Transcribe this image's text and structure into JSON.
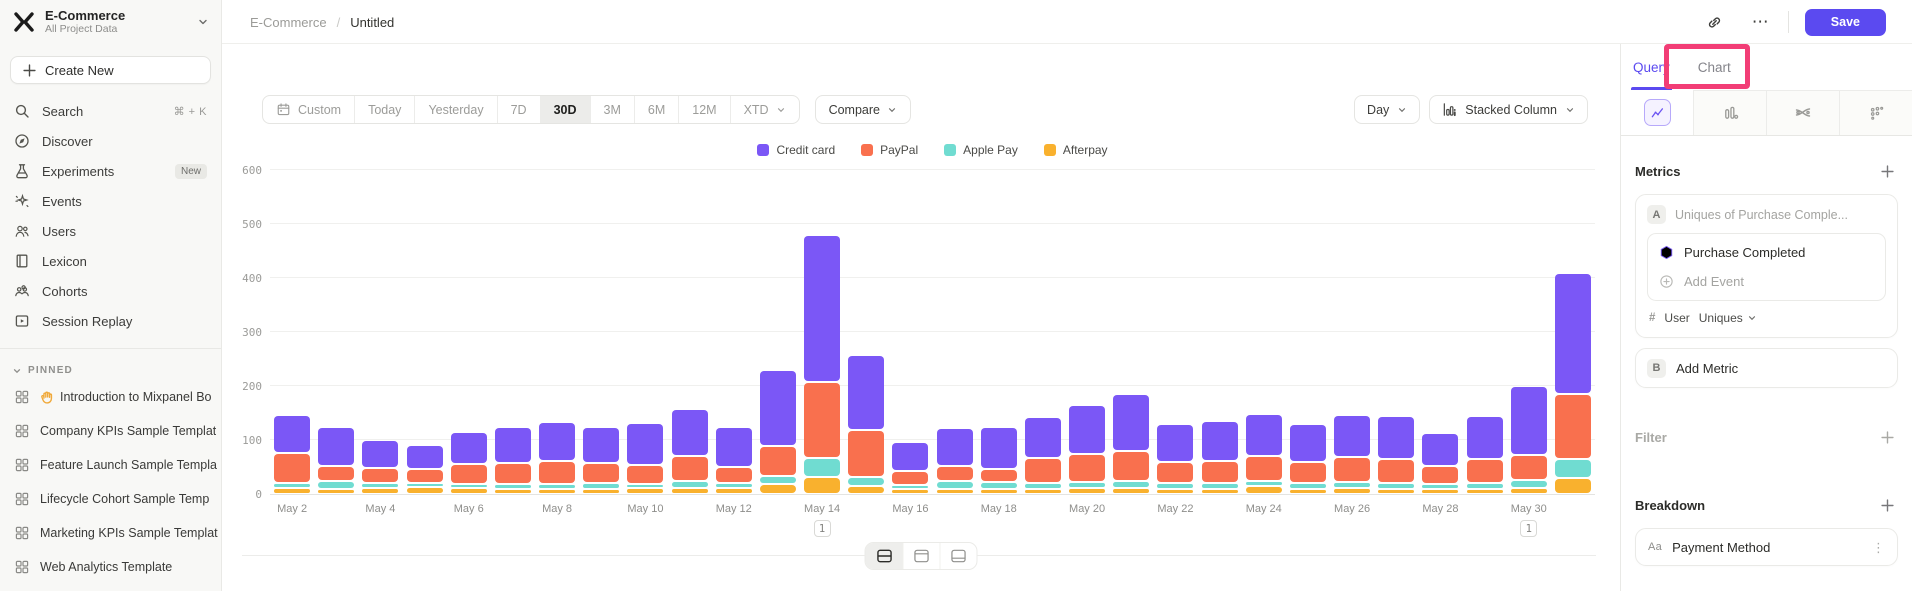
{
  "sidebar": {
    "project": {
      "name": "E-Commerce",
      "subtitle": "All Project Data"
    },
    "create_new_label": "Create New",
    "nav_items": [
      {
        "id": "search",
        "label": "Search",
        "shortcut": "⌘ + K"
      },
      {
        "id": "discover",
        "label": "Discover"
      },
      {
        "id": "experiments",
        "label": "Experiments",
        "badge": "New"
      },
      {
        "id": "events",
        "label": "Events"
      },
      {
        "id": "users",
        "label": "Users"
      },
      {
        "id": "lexicon",
        "label": "Lexicon"
      },
      {
        "id": "cohorts",
        "label": "Cohorts"
      },
      {
        "id": "session-replay",
        "label": "Session Replay"
      }
    ],
    "pinned_header": "PINNED",
    "pinned_items": [
      {
        "label": "Introduction to Mixpanel Bo",
        "has_wave_icon": true
      },
      {
        "label": "Company KPIs Sample Templat"
      },
      {
        "label": "Feature Launch Sample Templa"
      },
      {
        "label": "Lifecycle Cohort Sample Temp"
      },
      {
        "label": "Marketing KPIs Sample Templat"
      },
      {
        "label": "Web Analytics Template"
      }
    ]
  },
  "header": {
    "breadcrumb": {
      "project": "E-Commerce",
      "separator": "/",
      "page": "Untitled"
    },
    "more_label": "⋯",
    "save_label": "Save"
  },
  "toolbar": {
    "date_ranges": [
      "Custom",
      "Today",
      "Yesterday",
      "7D",
      "30D",
      "3M",
      "6M",
      "12M",
      "XTD"
    ],
    "active_range": "30D",
    "compare_label": "Compare",
    "granularity": "Day",
    "chart_type": "Stacked Column"
  },
  "right_panel": {
    "tabs": [
      {
        "label": "Query",
        "active": true
      },
      {
        "label": "Chart",
        "active": false
      }
    ],
    "metrics": {
      "title": "Metrics",
      "row_badge": "A",
      "row_label": "Uniques of Purchase Comple...",
      "event_name": "Purchase Completed",
      "add_event": "Add Event",
      "counting": {
        "symbol": "#",
        "entity": "User",
        "method": "Uniques"
      },
      "add_metric_badge": "B",
      "add_metric": "Add Metric"
    },
    "filter": {
      "title": "Filter"
    },
    "breakdown": {
      "title": "Breakdown",
      "property_icon": "Aa",
      "property": "Payment Method"
    }
  },
  "colors": {
    "accent": "#5b4af0",
    "highlight_pink": "#f23d76",
    "credit_card": "#7b57f6",
    "paypal": "#f9704e",
    "apple_pay": "#70dcd1",
    "afterpay": "#f9b12e"
  },
  "annotation_badge_label": "1",
  "chart_data": {
    "type": "bar",
    "stacked": true,
    "categories": [
      "May 2",
      "May 3",
      "May 4",
      "May 5",
      "May 6",
      "May 7",
      "May 8",
      "May 9",
      "May 10",
      "May 11",
      "May 12",
      "May 13",
      "May 14",
      "May 15",
      "May 16",
      "May 17",
      "May 18",
      "May 19",
      "May 20",
      "May 21",
      "May 22",
      "May 23",
      "May 24",
      "May 25",
      "May 26",
      "May 27",
      "May 28",
      "May 29",
      "May 30",
      "May 31"
    ],
    "series": [
      {
        "name": "Credit card",
        "color": "#7b57f6",
        "values": [
          70,
          73,
          51,
          44,
          59,
          66,
          72,
          66,
          77,
          87,
          74,
          140,
          272,
          138,
          54,
          70,
          77,
          77,
          91,
          106,
          70,
          74,
          78,
          70,
          79,
          80,
          62,
          79,
          128,
          224
        ]
      },
      {
        "name": "PayPal",
        "color": "#f9704e",
        "values": [
          56,
          27,
          28,
          26,
          37,
          40,
          42,
          38,
          35,
          46,
          30,
          56,
          142,
          87,
          26,
          27,
          25,
          46,
          52,
          55,
          40,
          42,
          46,
          40,
          46,
          45,
          32,
          45,
          46,
          120
        ]
      },
      {
        "name": "Apple Pay",
        "color": "#70dcd1",
        "values": [
          9,
          14,
          10,
          8,
          7,
          8,
          9,
          10,
          8,
          12,
          9,
          15,
          34,
          17,
          7,
          15,
          13,
          11,
          10,
          12,
          10,
          10,
          10,
          10,
          10,
          10,
          9,
          10,
          15,
          35
        ]
      },
      {
        "name": "Afterpay",
        "color": "#f9b12e",
        "values": [
          11,
          10,
          11,
          13,
          12,
          10,
          10,
          10,
          11,
          12,
          11,
          18,
          32,
          15,
          9,
          10,
          9,
          9,
          12,
          12,
          10,
          10,
          14,
          10,
          12,
          10,
          10,
          10,
          11,
          30
        ]
      }
    ],
    "stack_order_bottom_to_top": [
      "Afterpay",
      "Apple Pay",
      "PayPal",
      "Credit card"
    ],
    "legend_position": "top",
    "grid": "horizontal",
    "ylim": [
      0,
      600
    ],
    "yticks": [
      0,
      100,
      200,
      300,
      400,
      500,
      600
    ],
    "x_tick_labels": [
      "May 2",
      "May 4",
      "May 6",
      "May 8",
      "May 10",
      "May 12",
      "May 14",
      "May 16",
      "May 18",
      "May 20",
      "May 22",
      "May 24",
      "May 26",
      "May 28",
      "May 30"
    ],
    "annotations": [
      {
        "category": "May 14",
        "label": "1"
      },
      {
        "category": "May 30",
        "label": "1"
      }
    ]
  }
}
